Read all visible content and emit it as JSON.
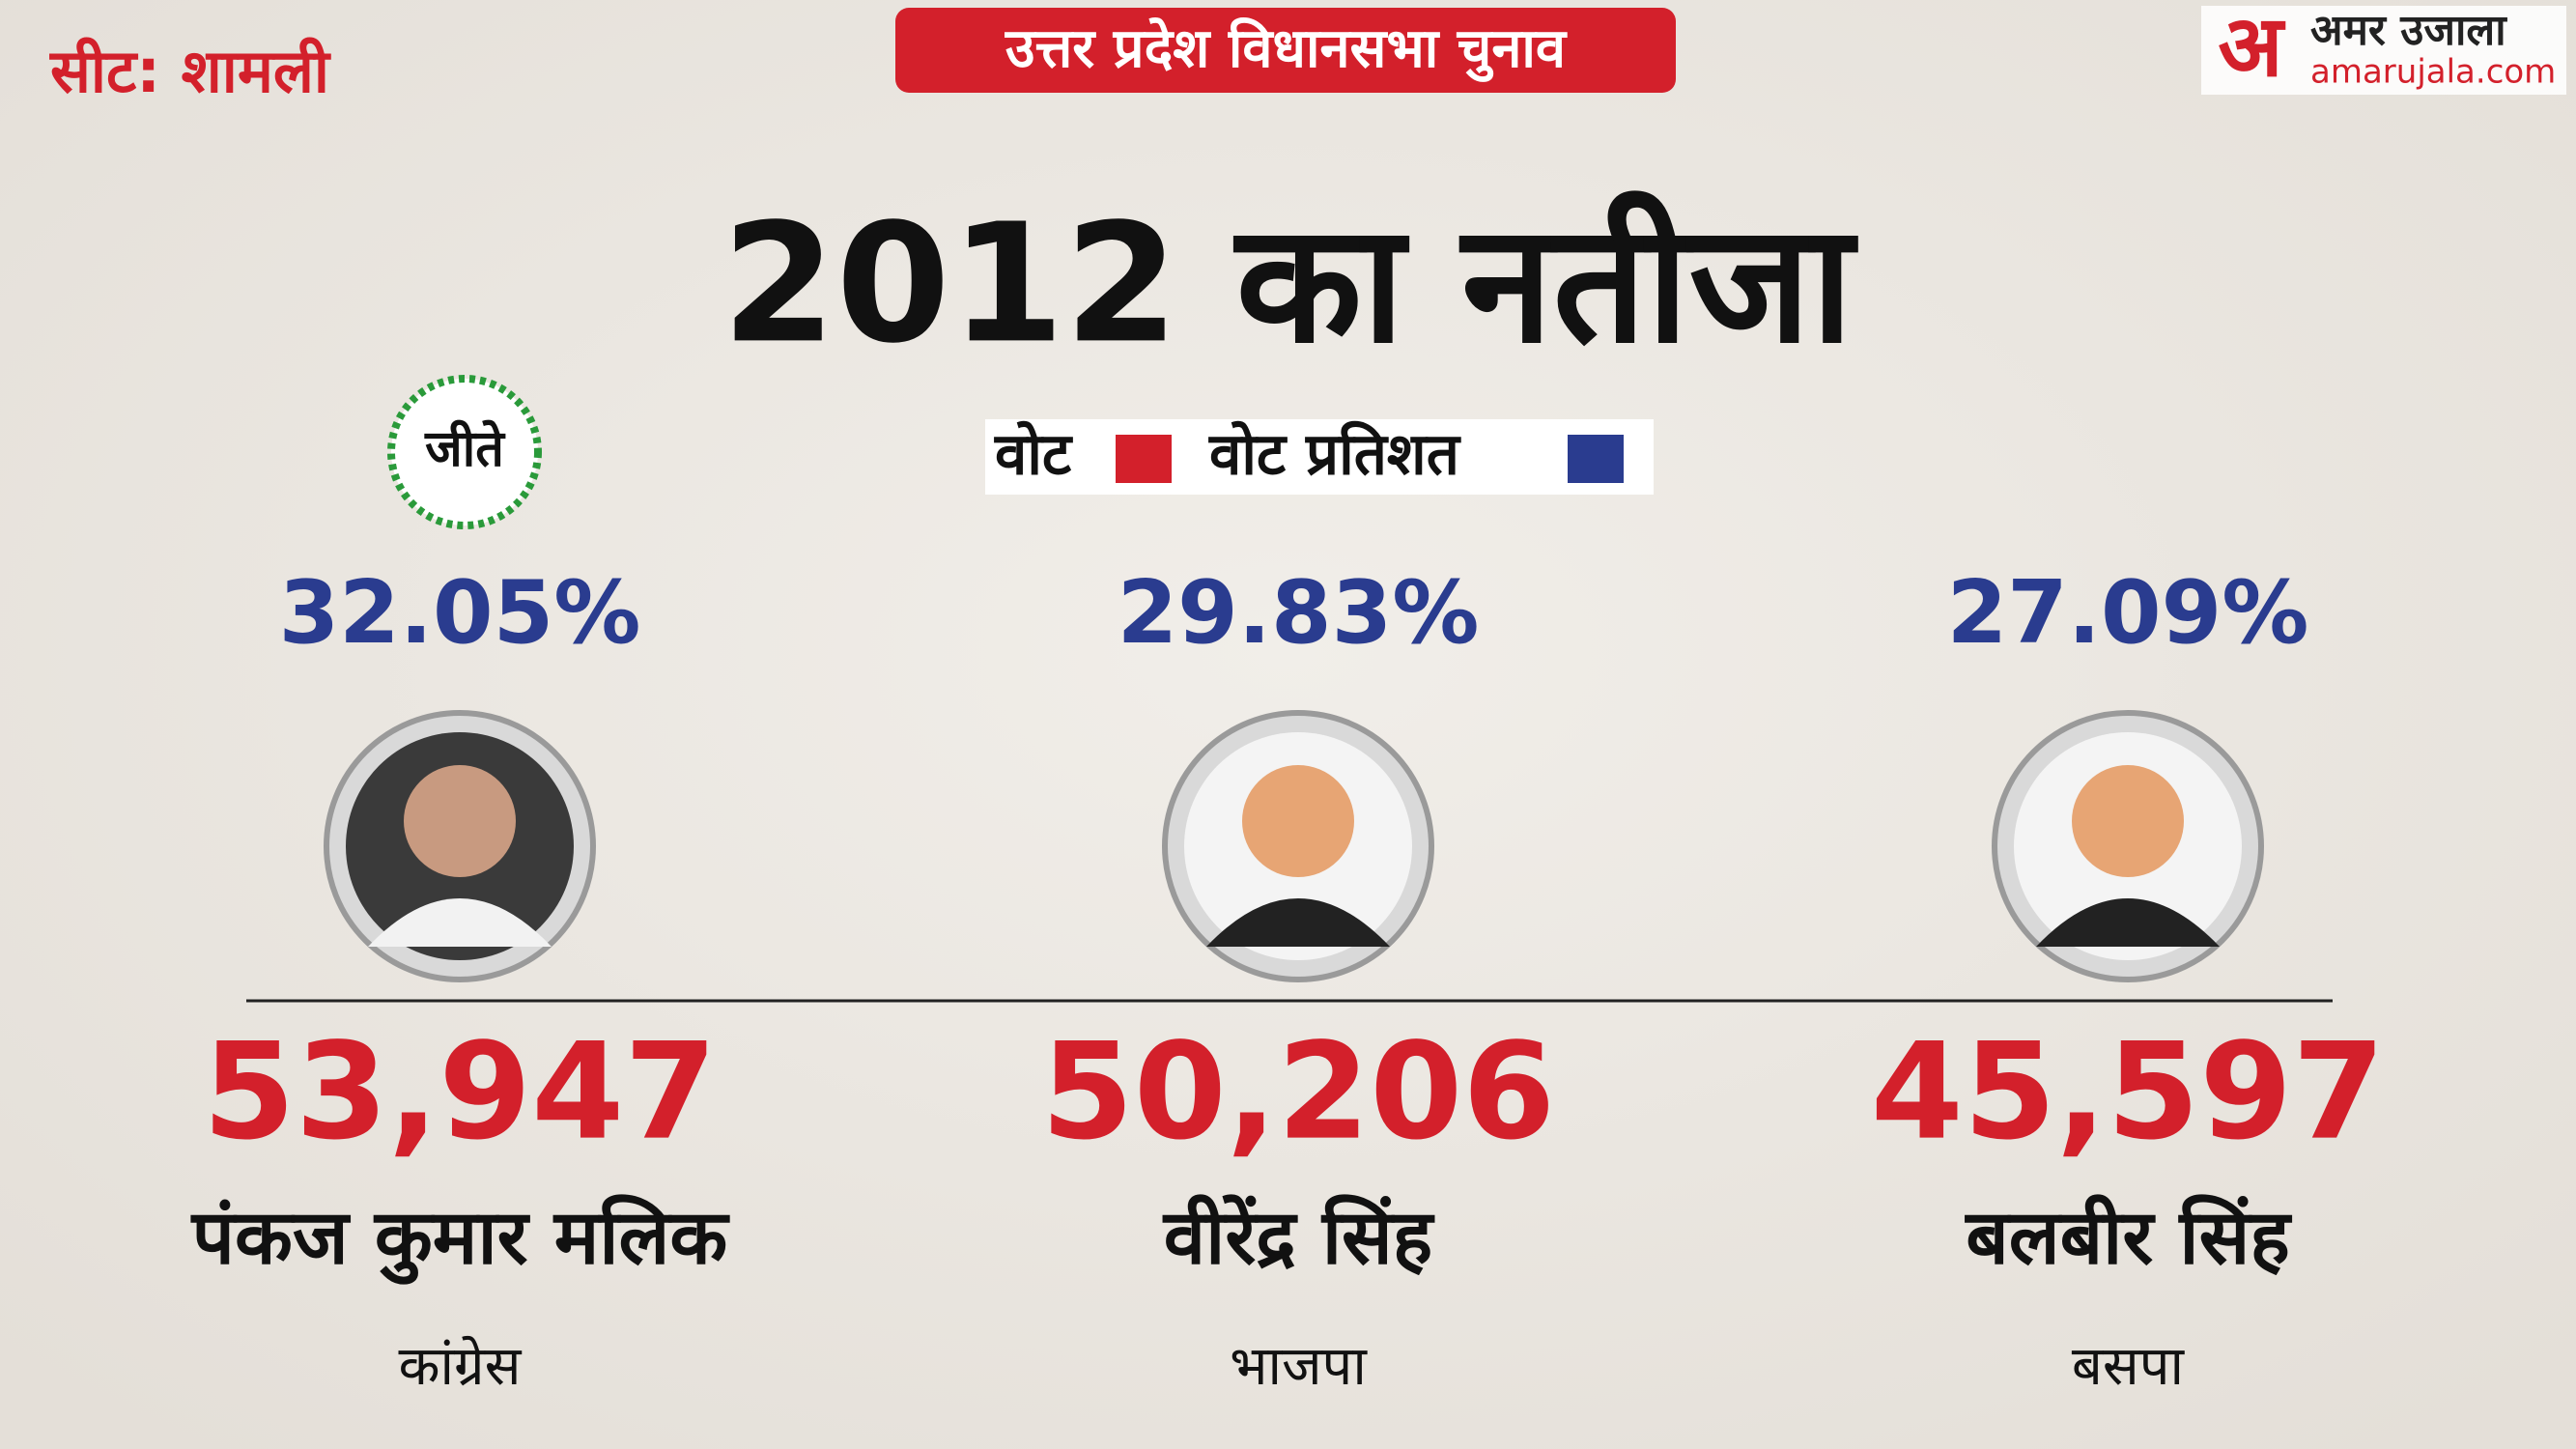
{
  "header": {
    "seat": "सीट: शामली",
    "banner": "उत्तर प्रदेश विधानसभा चुनाव",
    "logo_mark": "अ",
    "logo_name": "अमर उजाला",
    "logo_site": "amarujala.com"
  },
  "title": "2012 का नतीजा",
  "legend": {
    "votes": "वोट",
    "vote_percent": "वोट प्रतिशत"
  },
  "winner_badge": "जीते",
  "candidates": [
    {
      "percent": "32.05%",
      "votes": "53,947",
      "name": "पंकज कुमार मलिक",
      "party": "कांग्रेस"
    },
    {
      "percent": "29.83%",
      "votes": "50,206",
      "name": "वीरेंद्र सिंह",
      "party": "भाजपा"
    },
    {
      "percent": "27.09%",
      "votes": "45,597",
      "name": "बलबीर सिंह",
      "party": "बसपा"
    }
  ]
}
